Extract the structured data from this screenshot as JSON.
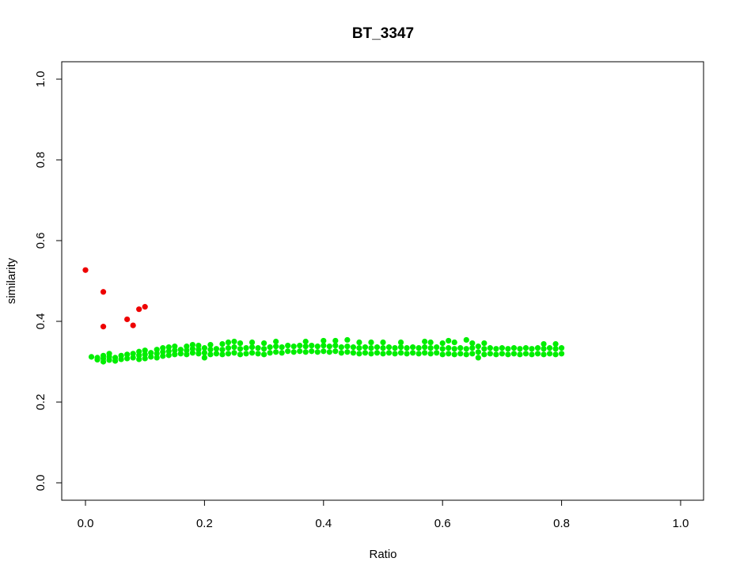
{
  "chart_data": {
    "type": "scatter",
    "title": "BT_3347",
    "xlabel": "Ratio",
    "ylabel": "similarity",
    "xlim": [
      0.0,
      1.0
    ],
    "ylim": [
      0.0,
      1.0
    ],
    "x_ticks": [
      "0.0",
      "0.2",
      "0.4",
      "0.6",
      "0.8",
      "1.0"
    ],
    "y_ticks": [
      "0.0",
      "0.2",
      "0.4",
      "0.6",
      "0.8",
      "1.0"
    ],
    "grid": false,
    "series": [
      {
        "name": "green",
        "color": "#00ee00",
        "points": [
          [
            0.01,
            0.312
          ],
          [
            0.02,
            0.305
          ],
          [
            0.02,
            0.31
          ],
          [
            0.03,
            0.3
          ],
          [
            0.03,
            0.308
          ],
          [
            0.03,
            0.315
          ],
          [
            0.04,
            0.304
          ],
          [
            0.04,
            0.312
          ],
          [
            0.04,
            0.32
          ],
          [
            0.05,
            0.302
          ],
          [
            0.05,
            0.31
          ],
          [
            0.06,
            0.306
          ],
          [
            0.06,
            0.315
          ],
          [
            0.07,
            0.308
          ],
          [
            0.07,
            0.318
          ],
          [
            0.08,
            0.31
          ],
          [
            0.08,
            0.32
          ],
          [
            0.09,
            0.306
          ],
          [
            0.09,
            0.316
          ],
          [
            0.09,
            0.325
          ],
          [
            0.1,
            0.308
          ],
          [
            0.1,
            0.318
          ],
          [
            0.1,
            0.328
          ],
          [
            0.11,
            0.312
          ],
          [
            0.11,
            0.322
          ],
          [
            0.12,
            0.31
          ],
          [
            0.12,
            0.32
          ],
          [
            0.12,
            0.33
          ],
          [
            0.13,
            0.314
          ],
          [
            0.13,
            0.324
          ],
          [
            0.13,
            0.334
          ],
          [
            0.14,
            0.316
          ],
          [
            0.14,
            0.326
          ],
          [
            0.14,
            0.336
          ],
          [
            0.15,
            0.318
          ],
          [
            0.15,
            0.328
          ],
          [
            0.15,
            0.338
          ],
          [
            0.16,
            0.32
          ],
          [
            0.16,
            0.33
          ],
          [
            0.17,
            0.318
          ],
          [
            0.17,
            0.328
          ],
          [
            0.17,
            0.338
          ],
          [
            0.18,
            0.322
          ],
          [
            0.18,
            0.332
          ],
          [
            0.18,
            0.342
          ],
          [
            0.19,
            0.32
          ],
          [
            0.19,
            0.33
          ],
          [
            0.19,
            0.34
          ],
          [
            0.2,
            0.31
          ],
          [
            0.2,
            0.322
          ],
          [
            0.2,
            0.334
          ],
          [
            0.21,
            0.318
          ],
          [
            0.21,
            0.33
          ],
          [
            0.21,
            0.342
          ],
          [
            0.22,
            0.32
          ],
          [
            0.22,
            0.332
          ],
          [
            0.23,
            0.318
          ],
          [
            0.23,
            0.33
          ],
          [
            0.23,
            0.344
          ],
          [
            0.24,
            0.32
          ],
          [
            0.24,
            0.334
          ],
          [
            0.24,
            0.348
          ],
          [
            0.25,
            0.322
          ],
          [
            0.25,
            0.336
          ],
          [
            0.25,
            0.35
          ],
          [
            0.26,
            0.318
          ],
          [
            0.26,
            0.332
          ],
          [
            0.26,
            0.346
          ],
          [
            0.27,
            0.32
          ],
          [
            0.27,
            0.334
          ],
          [
            0.28,
            0.322
          ],
          [
            0.28,
            0.336
          ],
          [
            0.28,
            0.348
          ],
          [
            0.29,
            0.32
          ],
          [
            0.29,
            0.334
          ],
          [
            0.3,
            0.318
          ],
          [
            0.3,
            0.332
          ],
          [
            0.3,
            0.346
          ],
          [
            0.31,
            0.322
          ],
          [
            0.31,
            0.336
          ],
          [
            0.32,
            0.324
          ],
          [
            0.32,
            0.338
          ],
          [
            0.32,
            0.35
          ],
          [
            0.33,
            0.322
          ],
          [
            0.33,
            0.336
          ],
          [
            0.34,
            0.326
          ],
          [
            0.34,
            0.34
          ],
          [
            0.35,
            0.324
          ],
          [
            0.35,
            0.338
          ],
          [
            0.36,
            0.326
          ],
          [
            0.36,
            0.34
          ],
          [
            0.37,
            0.324
          ],
          [
            0.37,
            0.338
          ],
          [
            0.37,
            0.35
          ],
          [
            0.38,
            0.326
          ],
          [
            0.38,
            0.34
          ],
          [
            0.39,
            0.324
          ],
          [
            0.39,
            0.338
          ],
          [
            0.4,
            0.326
          ],
          [
            0.4,
            0.34
          ],
          [
            0.4,
            0.352
          ],
          [
            0.41,
            0.324
          ],
          [
            0.41,
            0.338
          ],
          [
            0.42,
            0.326
          ],
          [
            0.42,
            0.34
          ],
          [
            0.42,
            0.352
          ],
          [
            0.43,
            0.322
          ],
          [
            0.43,
            0.336
          ],
          [
            0.44,
            0.324
          ],
          [
            0.44,
            0.338
          ],
          [
            0.44,
            0.354
          ],
          [
            0.45,
            0.322
          ],
          [
            0.45,
            0.336
          ],
          [
            0.46,
            0.32
          ],
          [
            0.46,
            0.334
          ],
          [
            0.46,
            0.348
          ],
          [
            0.47,
            0.322
          ],
          [
            0.47,
            0.336
          ],
          [
            0.48,
            0.32
          ],
          [
            0.48,
            0.334
          ],
          [
            0.48,
            0.348
          ],
          [
            0.49,
            0.322
          ],
          [
            0.49,
            0.336
          ],
          [
            0.5,
            0.32
          ],
          [
            0.5,
            0.334
          ],
          [
            0.5,
            0.348
          ],
          [
            0.51,
            0.322
          ],
          [
            0.51,
            0.336
          ],
          [
            0.52,
            0.32
          ],
          [
            0.52,
            0.334
          ],
          [
            0.53,
            0.322
          ],
          [
            0.53,
            0.336
          ],
          [
            0.53,
            0.348
          ],
          [
            0.54,
            0.32
          ],
          [
            0.54,
            0.334
          ],
          [
            0.55,
            0.322
          ],
          [
            0.55,
            0.336
          ],
          [
            0.56,
            0.32
          ],
          [
            0.56,
            0.334
          ],
          [
            0.57,
            0.322
          ],
          [
            0.57,
            0.336
          ],
          [
            0.57,
            0.35
          ],
          [
            0.58,
            0.32
          ],
          [
            0.58,
            0.334
          ],
          [
            0.58,
            0.348
          ],
          [
            0.59,
            0.322
          ],
          [
            0.59,
            0.336
          ],
          [
            0.6,
            0.318
          ],
          [
            0.6,
            0.332
          ],
          [
            0.6,
            0.346
          ],
          [
            0.61,
            0.32
          ],
          [
            0.61,
            0.334
          ],
          [
            0.61,
            0.352
          ],
          [
            0.62,
            0.318
          ],
          [
            0.62,
            0.332
          ],
          [
            0.62,
            0.348
          ],
          [
            0.63,
            0.32
          ],
          [
            0.63,
            0.334
          ],
          [
            0.64,
            0.318
          ],
          [
            0.64,
            0.332
          ],
          [
            0.64,
            0.354
          ],
          [
            0.65,
            0.32
          ],
          [
            0.65,
            0.334
          ],
          [
            0.65,
            0.346
          ],
          [
            0.66,
            0.31
          ],
          [
            0.66,
            0.324
          ],
          [
            0.66,
            0.338
          ],
          [
            0.67,
            0.318
          ],
          [
            0.67,
            0.332
          ],
          [
            0.67,
            0.346
          ],
          [
            0.68,
            0.32
          ],
          [
            0.68,
            0.334
          ],
          [
            0.69,
            0.318
          ],
          [
            0.69,
            0.332
          ],
          [
            0.7,
            0.32
          ],
          [
            0.7,
            0.334
          ],
          [
            0.71,
            0.318
          ],
          [
            0.71,
            0.332
          ],
          [
            0.72,
            0.32
          ],
          [
            0.72,
            0.334
          ],
          [
            0.73,
            0.318
          ],
          [
            0.73,
            0.332
          ],
          [
            0.74,
            0.32
          ],
          [
            0.74,
            0.334
          ],
          [
            0.75,
            0.318
          ],
          [
            0.75,
            0.332
          ],
          [
            0.76,
            0.32
          ],
          [
            0.76,
            0.334
          ],
          [
            0.77,
            0.318
          ],
          [
            0.77,
            0.332
          ],
          [
            0.77,
            0.344
          ],
          [
            0.78,
            0.32
          ],
          [
            0.78,
            0.334
          ],
          [
            0.79,
            0.318
          ],
          [
            0.79,
            0.332
          ],
          [
            0.79,
            0.344
          ],
          [
            0.8,
            0.32
          ],
          [
            0.8,
            0.334
          ]
        ]
      },
      {
        "name": "red",
        "color": "#ee0000",
        "points": [
          [
            0.0,
            0.527
          ],
          [
            0.03,
            0.473
          ],
          [
            0.03,
            0.387
          ],
          [
            0.07,
            0.405
          ],
          [
            0.08,
            0.39
          ],
          [
            0.09,
            0.43
          ],
          [
            0.1,
            0.436
          ]
        ]
      }
    ]
  }
}
